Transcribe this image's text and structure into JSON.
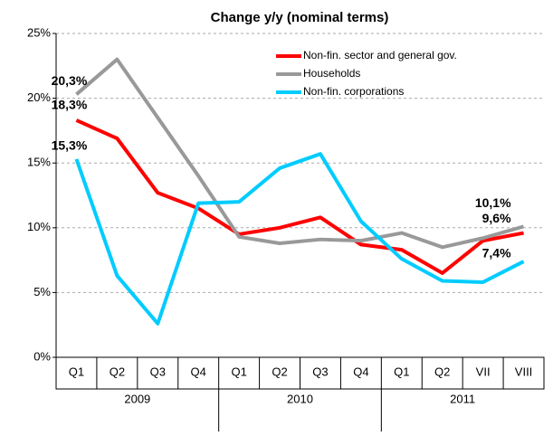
{
  "chart_data": {
    "type": "line",
    "title": "Change y/y (nominal terms)",
    "categories": [
      "Q1",
      "Q2",
      "Q3",
      "Q4",
      "Q1",
      "Q2",
      "Q3",
      "Q4",
      "Q1",
      "Q2",
      "VII",
      "VIII"
    ],
    "x_groups": [
      "2009",
      "2010",
      "2011"
    ],
    "series": [
      {
        "name": "Non-fin. sector and general gov.",
        "color": "#ff0000",
        "values": [
          18.3,
          16.9,
          12.7,
          11.5,
          9.5,
          10.0,
          10.8,
          8.7,
          8.3,
          6.5,
          9.0,
          9.6
        ],
        "value_labels": [
          "18,3%",
          null,
          null,
          null,
          null,
          null,
          null,
          null,
          null,
          null,
          null,
          "9,6%"
        ]
      },
      {
        "name": "Households",
        "color": "#999999",
        "values": [
          20.3,
          23.0,
          18.5,
          14.0,
          9.3,
          8.8,
          9.1,
          9.0,
          9.6,
          8.5,
          9.2,
          10.1
        ],
        "value_labels": [
          "20,3%",
          null,
          null,
          null,
          null,
          null,
          null,
          null,
          null,
          null,
          null,
          "10,1%"
        ]
      },
      {
        "name": "Non-fin. corporations",
        "color": "#00ccff",
        "values": [
          15.3,
          6.3,
          2.6,
          11.9,
          12.0,
          14.6,
          15.7,
          10.5,
          7.6,
          5.9,
          5.8,
          7.4
        ],
        "value_labels": [
          "15,3%",
          null,
          null,
          null,
          null,
          null,
          null,
          null,
          null,
          null,
          null,
          "7,4%"
        ]
      }
    ],
    "ylim": [
      0,
      25
    ],
    "yticks": [
      {
        "value": 0,
        "label": "0%"
      },
      {
        "value": 5,
        "label": "5%"
      },
      {
        "value": 10,
        "label": "10%"
      },
      {
        "value": 15,
        "label": "15%"
      },
      {
        "value": 20,
        "label": "20%"
      },
      {
        "value": 25,
        "label": "25%"
      }
    ],
    "grid": true,
    "legend": "upper right"
  }
}
